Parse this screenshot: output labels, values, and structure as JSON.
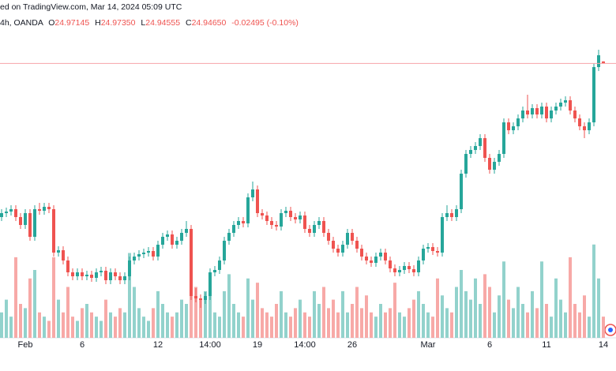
{
  "chart_data": {
    "type": "candlestick",
    "source_text": "ed on TradingView.com, Mar 14, 2024 05:09 UTC",
    "symbol_text": "4h, OANDA",
    "ohlc_labels": [
      "O",
      "H",
      "L",
      "C"
    ],
    "ohlc_values": [
      "24.97145",
      "24.97350",
      "24.94555",
      "24.94650"
    ],
    "change_text": "-0.02495 (-0.10%)",
    "categories": [
      null,
      null,
      null,
      null,
      null,
      "Feb",
      null,
      null,
      null,
      null,
      null,
      null,
      null,
      null,
      null,
      null,
      null,
      "6",
      null,
      null,
      null,
      null,
      null,
      null,
      null,
      null,
      null,
      null,
      null,
      null,
      null,
      null,
      null,
      "12",
      null,
      null,
      null,
      null,
      null,
      null,
      null,
      null,
      null,
      null,
      "14:00",
      null,
      null,
      null,
      null,
      null,
      null,
      null,
      null,
      null,
      "19",
      null,
      null,
      null,
      null,
      null,
      null,
      null,
      null,
      null,
      "14:00",
      null,
      null,
      null,
      null,
      null,
      null,
      null,
      null,
      null,
      "26",
      null,
      null,
      null,
      null,
      null,
      null,
      null,
      null,
      null,
      null,
      null,
      null,
      null,
      null,
      null,
      "Mar",
      null,
      null,
      null,
      null,
      null,
      null,
      null,
      null,
      null,
      null,
      null,
      null,
      "6",
      null,
      null,
      null,
      null,
      null,
      null,
      null,
      null,
      null,
      null,
      null,
      "11",
      null,
      null,
      null,
      null,
      null,
      null,
      null,
      null,
      null,
      null,
      null,
      "14"
    ],
    "open": [
      23.0,
      23.05,
      23.07,
      23.1,
      23.0,
      22.9,
      23.05,
      22.75,
      23.1,
      23.08,
      23.13,
      23.1,
      22.55,
      22.58,
      22.45,
      22.3,
      22.25,
      22.3,
      22.25,
      22.27,
      22.23,
      22.3,
      22.32,
      22.2,
      22.3,
      22.25,
      22.2,
      22.25,
      22.45,
      22.5,
      22.53,
      22.55,
      22.57,
      22.5,
      22.65,
      22.75,
      22.78,
      22.65,
      22.7,
      22.8,
      22.85,
      22.0,
      21.97,
      21.95,
      22.0,
      22.3,
      22.33,
      22.45,
      22.7,
      22.8,
      22.9,
      22.95,
      22.92,
      23.25,
      23.35,
      23.05,
      23.02,
      22.95,
      22.9,
      22.88,
      23.05,
      23.08,
      23.0,
      22.97,
      23.02,
      22.85,
      22.8,
      22.9,
      22.95,
      22.8,
      22.7,
      22.6,
      22.55,
      22.65,
      22.8,
      22.7,
      22.6,
      22.5,
      22.45,
      22.42,
      22.5,
      22.55,
      22.45,
      22.35,
      22.3,
      22.33,
      22.38,
      22.34,
      22.3,
      22.45,
      22.6,
      22.62,
      22.57,
      22.55,
      23.0,
      23.05,
      23.0,
      23.1,
      23.55,
      23.8,
      23.85,
      23.9,
      24.0,
      23.75,
      23.6,
      23.7,
      23.8,
      24.2,
      24.1,
      24.15,
      24.25,
      24.35,
      24.3,
      24.38,
      24.3,
      24.4,
      24.25,
      24.35,
      24.4,
      24.45,
      24.48,
      24.35,
      24.25,
      24.15,
      24.1,
      24.2,
      24.9,
      24.97145
    ],
    "high": [
      23.1,
      23.12,
      23.15,
      23.15,
      23.05,
      23.1,
      23.1,
      23.15,
      23.18,
      23.18,
      23.18,
      23.15,
      22.63,
      22.63,
      22.5,
      22.35,
      22.35,
      22.35,
      22.32,
      22.32,
      22.35,
      22.37,
      22.37,
      22.35,
      22.35,
      22.3,
      22.3,
      22.5,
      22.55,
      22.58,
      22.6,
      22.62,
      22.62,
      22.7,
      22.8,
      22.83,
      22.83,
      22.75,
      22.85,
      22.95,
      22.9,
      22.1,
      22.02,
      22.05,
      22.35,
      22.38,
      22.5,
      22.75,
      22.85,
      22.95,
      23.0,
      23.0,
      23.3,
      23.45,
      23.4,
      23.1,
      23.07,
      23.0,
      22.95,
      23.1,
      23.13,
      23.13,
      23.05,
      23.07,
      23.07,
      22.9,
      22.95,
      23.0,
      23.0,
      22.85,
      22.75,
      22.65,
      22.7,
      22.85,
      22.85,
      22.75,
      22.65,
      22.55,
      22.5,
      22.55,
      22.6,
      22.6,
      22.5,
      22.4,
      22.38,
      22.43,
      22.43,
      22.39,
      22.5,
      22.65,
      22.67,
      22.67,
      22.62,
      23.05,
      23.15,
      23.1,
      23.15,
      23.6,
      23.85,
      23.9,
      23.95,
      24.05,
      24.05,
      23.8,
      23.75,
      23.85,
      24.25,
      24.25,
      24.2,
      24.3,
      24.4,
      24.55,
      24.43,
      24.43,
      24.45,
      24.45,
      24.4,
      24.45,
      24.5,
      24.53,
      24.53,
      24.4,
      24.3,
      24.2,
      24.25,
      24.95,
      25.12,
      24.9735
    ],
    "low": [
      22.95,
      23.0,
      23.02,
      22.95,
      22.85,
      22.85,
      22.7,
      22.7,
      23.03,
      23.03,
      23.05,
      22.5,
      22.5,
      22.4,
      22.25,
      22.2,
      22.2,
      22.2,
      22.2,
      22.18,
      22.18,
      22.25,
      22.15,
      22.15,
      22.2,
      22.15,
      22.15,
      22.2,
      22.4,
      22.45,
      22.48,
      22.5,
      22.45,
      22.45,
      22.6,
      22.7,
      22.6,
      22.6,
      22.65,
      22.75,
      21.95,
      21.92,
      21.85,
      21.9,
      21.95,
      22.25,
      22.28,
      22.4,
      22.65,
      22.75,
      22.85,
      22.87,
      22.87,
      23.2,
      23.0,
      22.97,
      22.9,
      22.85,
      22.83,
      22.83,
      23.0,
      22.95,
      22.92,
      22.92,
      22.8,
      22.75,
      22.75,
      22.85,
      22.75,
      22.65,
      22.55,
      22.5,
      22.5,
      22.6,
      22.65,
      22.55,
      22.45,
      22.4,
      22.37,
      22.37,
      22.45,
      22.4,
      22.3,
      22.25,
      22.25,
      22.28,
      22.29,
      22.25,
      22.25,
      22.4,
      22.55,
      22.52,
      22.5,
      22.5,
      22.95,
      22.95,
      22.95,
      23.05,
      23.5,
      23.75,
      23.8,
      23.85,
      23.7,
      23.55,
      23.55,
      23.65,
      23.75,
      24.05,
      24.05,
      24.1,
      24.2,
      24.25,
      24.25,
      24.25,
      24.25,
      24.2,
      24.2,
      24.3,
      24.35,
      24.4,
      24.3,
      24.2,
      24.1,
      24.0,
      24.05,
      24.15,
      24.85,
      24.94555
    ],
    "close": [
      23.05,
      23.07,
      23.1,
      23.0,
      22.9,
      23.05,
      22.75,
      23.1,
      23.08,
      23.13,
      23.1,
      22.55,
      22.58,
      22.45,
      22.3,
      22.25,
      22.3,
      22.25,
      22.27,
      22.23,
      22.3,
      22.32,
      22.2,
      22.3,
      22.25,
      22.2,
      22.25,
      22.45,
      22.5,
      22.53,
      22.55,
      22.57,
      22.5,
      22.65,
      22.75,
      22.78,
      22.65,
      22.7,
      22.8,
      22.85,
      22.0,
      21.97,
      21.95,
      22.0,
      22.3,
      22.33,
      22.45,
      22.7,
      22.8,
      22.9,
      22.95,
      22.92,
      23.25,
      23.35,
      23.05,
      23.02,
      22.95,
      22.9,
      22.88,
      23.05,
      23.08,
      23.0,
      22.97,
      23.02,
      22.85,
      22.8,
      22.9,
      22.95,
      22.8,
      22.7,
      22.6,
      22.55,
      22.65,
      22.8,
      22.7,
      22.6,
      22.5,
      22.45,
      22.42,
      22.5,
      22.55,
      22.45,
      22.35,
      22.3,
      22.33,
      22.38,
      22.34,
      22.3,
      22.45,
      22.6,
      22.62,
      22.57,
      22.55,
      23.0,
      23.05,
      23.0,
      23.1,
      23.55,
      23.8,
      23.85,
      23.9,
      24.0,
      23.75,
      23.6,
      23.7,
      23.8,
      24.2,
      24.1,
      24.15,
      24.25,
      24.35,
      24.3,
      24.38,
      24.3,
      24.4,
      24.25,
      24.35,
      24.4,
      24.45,
      24.48,
      24.35,
      24.25,
      24.15,
      24.1,
      24.2,
      24.9,
      25.05,
      24.9465
    ],
    "volume": [
      30,
      45,
      25,
      95,
      40,
      35,
      70,
      80,
      30,
      25,
      20,
      95,
      45,
      30,
      60,
      25,
      20,
      35,
      40,
      30,
      25,
      20,
      45,
      30,
      25,
      35,
      30,
      100,
      60,
      35,
      25,
      20,
      35,
      55,
      40,
      30,
      25,
      30,
      45,
      40,
      80,
      60,
      45,
      55,
      70,
      30,
      25,
      55,
      75,
      40,
      30,
      25,
      70,
      45,
      65,
      35,
      30,
      25,
      40,
      55,
      30,
      25,
      35,
      45,
      30,
      25,
      55,
      40,
      60,
      35,
      45,
      30,
      55,
      30,
      40,
      60,
      35,
      50,
      30,
      25,
      40,
      30,
      35,
      65,
      30,
      25,
      35,
      45,
      55,
      40,
      30,
      25,
      70,
      50,
      35,
      30,
      60,
      80,
      55,
      45,
      70,
      40,
      75,
      60,
      30,
      50,
      90,
      45,
      35,
      60,
      40,
      30,
      55,
      35,
      90,
      40,
      25,
      70,
      45,
      30,
      95,
      40,
      30,
      50,
      25,
      110,
      70,
      25
    ],
    "ylim": [
      21.45,
      25.75
    ],
    "volume_lim": [
      0,
      400
    ],
    "up_color": "#26a69a",
    "down_color": "#ef5350",
    "up_volume_color": "#92d2cc",
    "down_volume_color": "#f7a9a7",
    "price_line_color": "#f7a3a8"
  }
}
